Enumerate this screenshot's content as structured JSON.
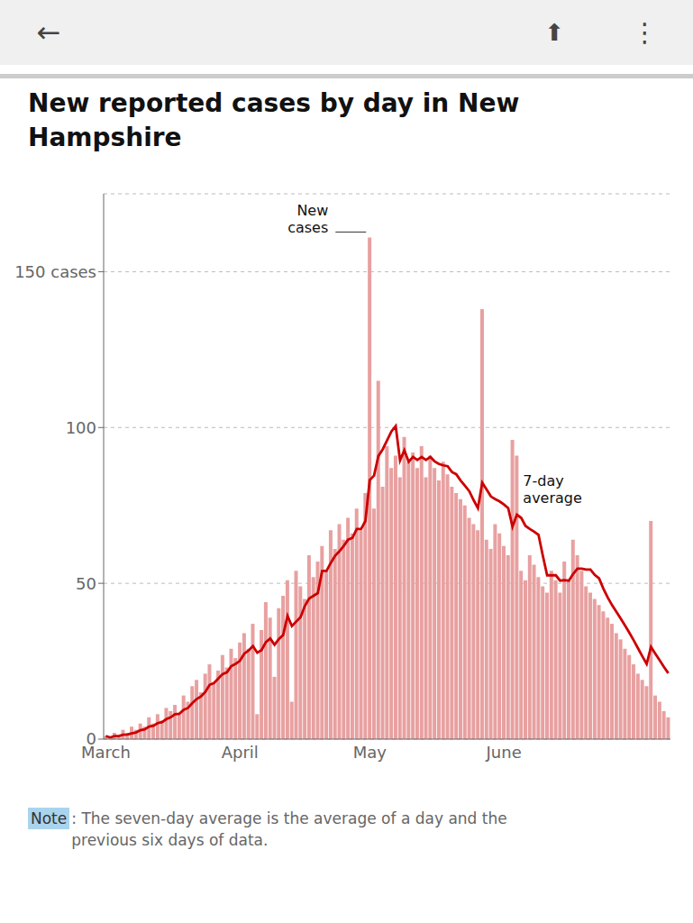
{
  "chart_data": {
    "type": "bar",
    "title": "New reported cases by day in New\nHampshire",
    "annotations": [
      "←",
      "⬆",
      "⋮",
      "New\ncases",
      "7-day\naverage",
      "Note",
      ": The seven-day average is the average of a day and the\nprevious six days of data."
    ],
    "categories": [
      "March",
      null,
      null,
      null,
      null,
      null,
      null,
      null,
      null,
      null,
      null,
      null,
      null,
      null,
      null,
      null,
      null,
      null,
      null,
      null,
      null,
      null,
      null,
      null,
      null,
      null,
      null,
      null,
      null,
      null,
      null,
      "April",
      null,
      null,
      null,
      null,
      null,
      null,
      null,
      null,
      null,
      null,
      null,
      null,
      null,
      null,
      null,
      null,
      null,
      null,
      null,
      null,
      null,
      null,
      null,
      null,
      null,
      null,
      null,
      null,
      null,
      "May",
      null,
      null,
      null,
      null,
      null,
      null,
      null,
      null,
      null,
      null,
      null,
      null,
      null,
      null,
      null,
      null,
      null,
      null,
      null,
      null,
      null,
      null,
      null,
      null,
      null,
      null,
      null,
      null,
      null,
      null,
      "June",
      null,
      null,
      null,
      null,
      null,
      null,
      null,
      null,
      null,
      null,
      null,
      null,
      null,
      null,
      null,
      null,
      null,
      null,
      null,
      null,
      null,
      null,
      null,
      null,
      null,
      null,
      null,
      null,
      null,
      null,
      null,
      null,
      null,
      null,
      null,
      null,
      null,
      null
    ],
    "series": [
      {
        "type": "bar",
        "color": "#e8a0a0",
        "values": [
          1,
          0,
          2,
          1,
          3,
          2,
          4,
          3,
          5,
          4,
          7,
          5,
          8,
          6,
          10,
          9,
          11,
          8,
          14,
          12,
          17,
          19,
          15,
          21,
          24,
          18,
          22,
          27,
          23,
          29,
          26,
          31,
          34,
          29,
          37,
          8,
          35,
          44,
          39,
          20,
          42,
          46,
          51,
          12,
          54,
          49,
          45,
          59,
          52,
          57,
          62,
          54,
          67,
          61,
          69,
          64,
          71,
          66,
          74,
          67,
          79,
          161,
          74,
          115,
          81,
          94,
          87,
          91,
          84,
          97,
          89,
          92,
          87,
          94,
          84,
          91,
          87,
          83,
          89,
          85,
          81,
          79,
          77,
          75,
          71,
          69,
          67,
          138,
          64,
          61,
          69,
          66,
          62,
          59,
          96,
          91,
          54,
          51,
          59,
          56,
          52,
          49,
          47,
          54,
          51,
          47,
          57,
          51,
          64,
          59,
          54,
          49,
          47,
          45,
          43,
          41,
          39,
          37,
          34,
          32,
          29,
          27,
          24,
          21,
          19,
          17,
          70,
          14,
          12,
          9,
          7
        ]
      },
      {
        "type": "line",
        "color": "#cc0000",
        "values": [
          1,
          0.5,
          1,
          1,
          1.4,
          1.5,
          1.857143,
          2.142857,
          2.857143,
          3.142857,
          4,
          4.285714,
          5.142857,
          5.428571,
          6.428571,
          7,
          8,
          8.142857,
          9.428571,
          10,
          11.571429,
          12.857143,
          13.714286,
          15.142857,
          17.428571,
          18,
          19.428571,
          20.857143,
          21.428571,
          23.428571,
          24.142857,
          25.142857,
          27.428571,
          28.428571,
          29.857143,
          27.714286,
          28.571429,
          31.142857,
          32.285714,
          30.285714,
          32.142857,
          33.428571,
          39.571429,
          36.285714,
          37.714286,
          39.142857,
          42.714286,
          45.142857,
          46,
          46.857143,
          54,
          54,
          56.571429,
          58.857143,
          60.285714,
          62,
          64,
          64.571429,
          67.428571,
          67.428571,
          70,
          83.142857,
          84.571429,
          90.857143,
          93,
          95.857143,
          98.714286,
          100.428571,
          89.428571,
          92.714286,
          89,
          90.571429,
          89.571429,
          90.571429,
          89.571429,
          90.571429,
          89.142857,
          88.285714,
          87.857143,
          87.571429,
          85.714286,
          85,
          83,
          81.285714,
          79.571429,
          76.714286,
          74.142857,
          82.285714,
          80.142857,
          77.857143,
          77,
          76.285714,
          75.285714,
          74.142857,
          68.142857,
          72,
          71,
          68.428571,
          67.428571,
          66.571429,
          65.571429,
          58.857143,
          52.571429,
          52.571429,
          52.571429,
          50.857143,
          51,
          50.857143,
          53,
          54.714286,
          54.714286,
          54.428571,
          54.428571,
          52.714286,
          51.571429,
          48.285714,
          45.428571,
          43,
          40.857143,
          38.714286,
          36.428571,
          34.142857,
          31.714286,
          29.142857,
          26.571429,
          24.142857,
          29.571429,
          27.428571,
          25.285714,
          23.142857,
          21.142857
        ]
      }
    ],
    "ylim": [
      0,
      175
    ],
    "yticks": [
      0,
      50,
      100,
      {
        "value": 150,
        "label": "150 cases"
      }
    ],
    "grid": true
  }
}
